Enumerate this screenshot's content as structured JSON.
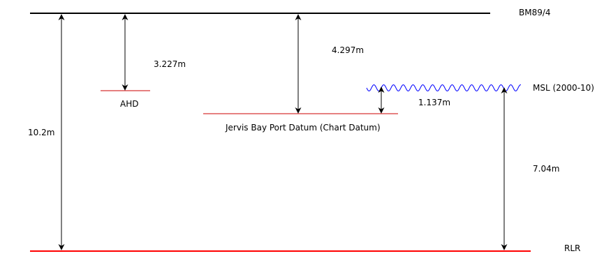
{
  "levels": {
    "bm": "BM89/4",
    "msl": "MSL (2000-10)",
    "ahd": "AHD",
    "chart_datum": "Jervis Bay Port Datum (Chart Datum)",
    "rlr": "RLR"
  },
  "measurements": {
    "bm_to_rlr": "10.2m",
    "bm_to_ahd": "3.227m",
    "bm_to_chart_datum": "4.297m",
    "chart_datum_to_msl": "1.137m",
    "rlr_to_msl": "7.04m"
  },
  "colors": {
    "bm_line": "#000000",
    "rlr_line": "#ff0000",
    "datum_line": "#cc0000",
    "msl_wave": "#0000ff",
    "arrow": "#000000"
  }
}
